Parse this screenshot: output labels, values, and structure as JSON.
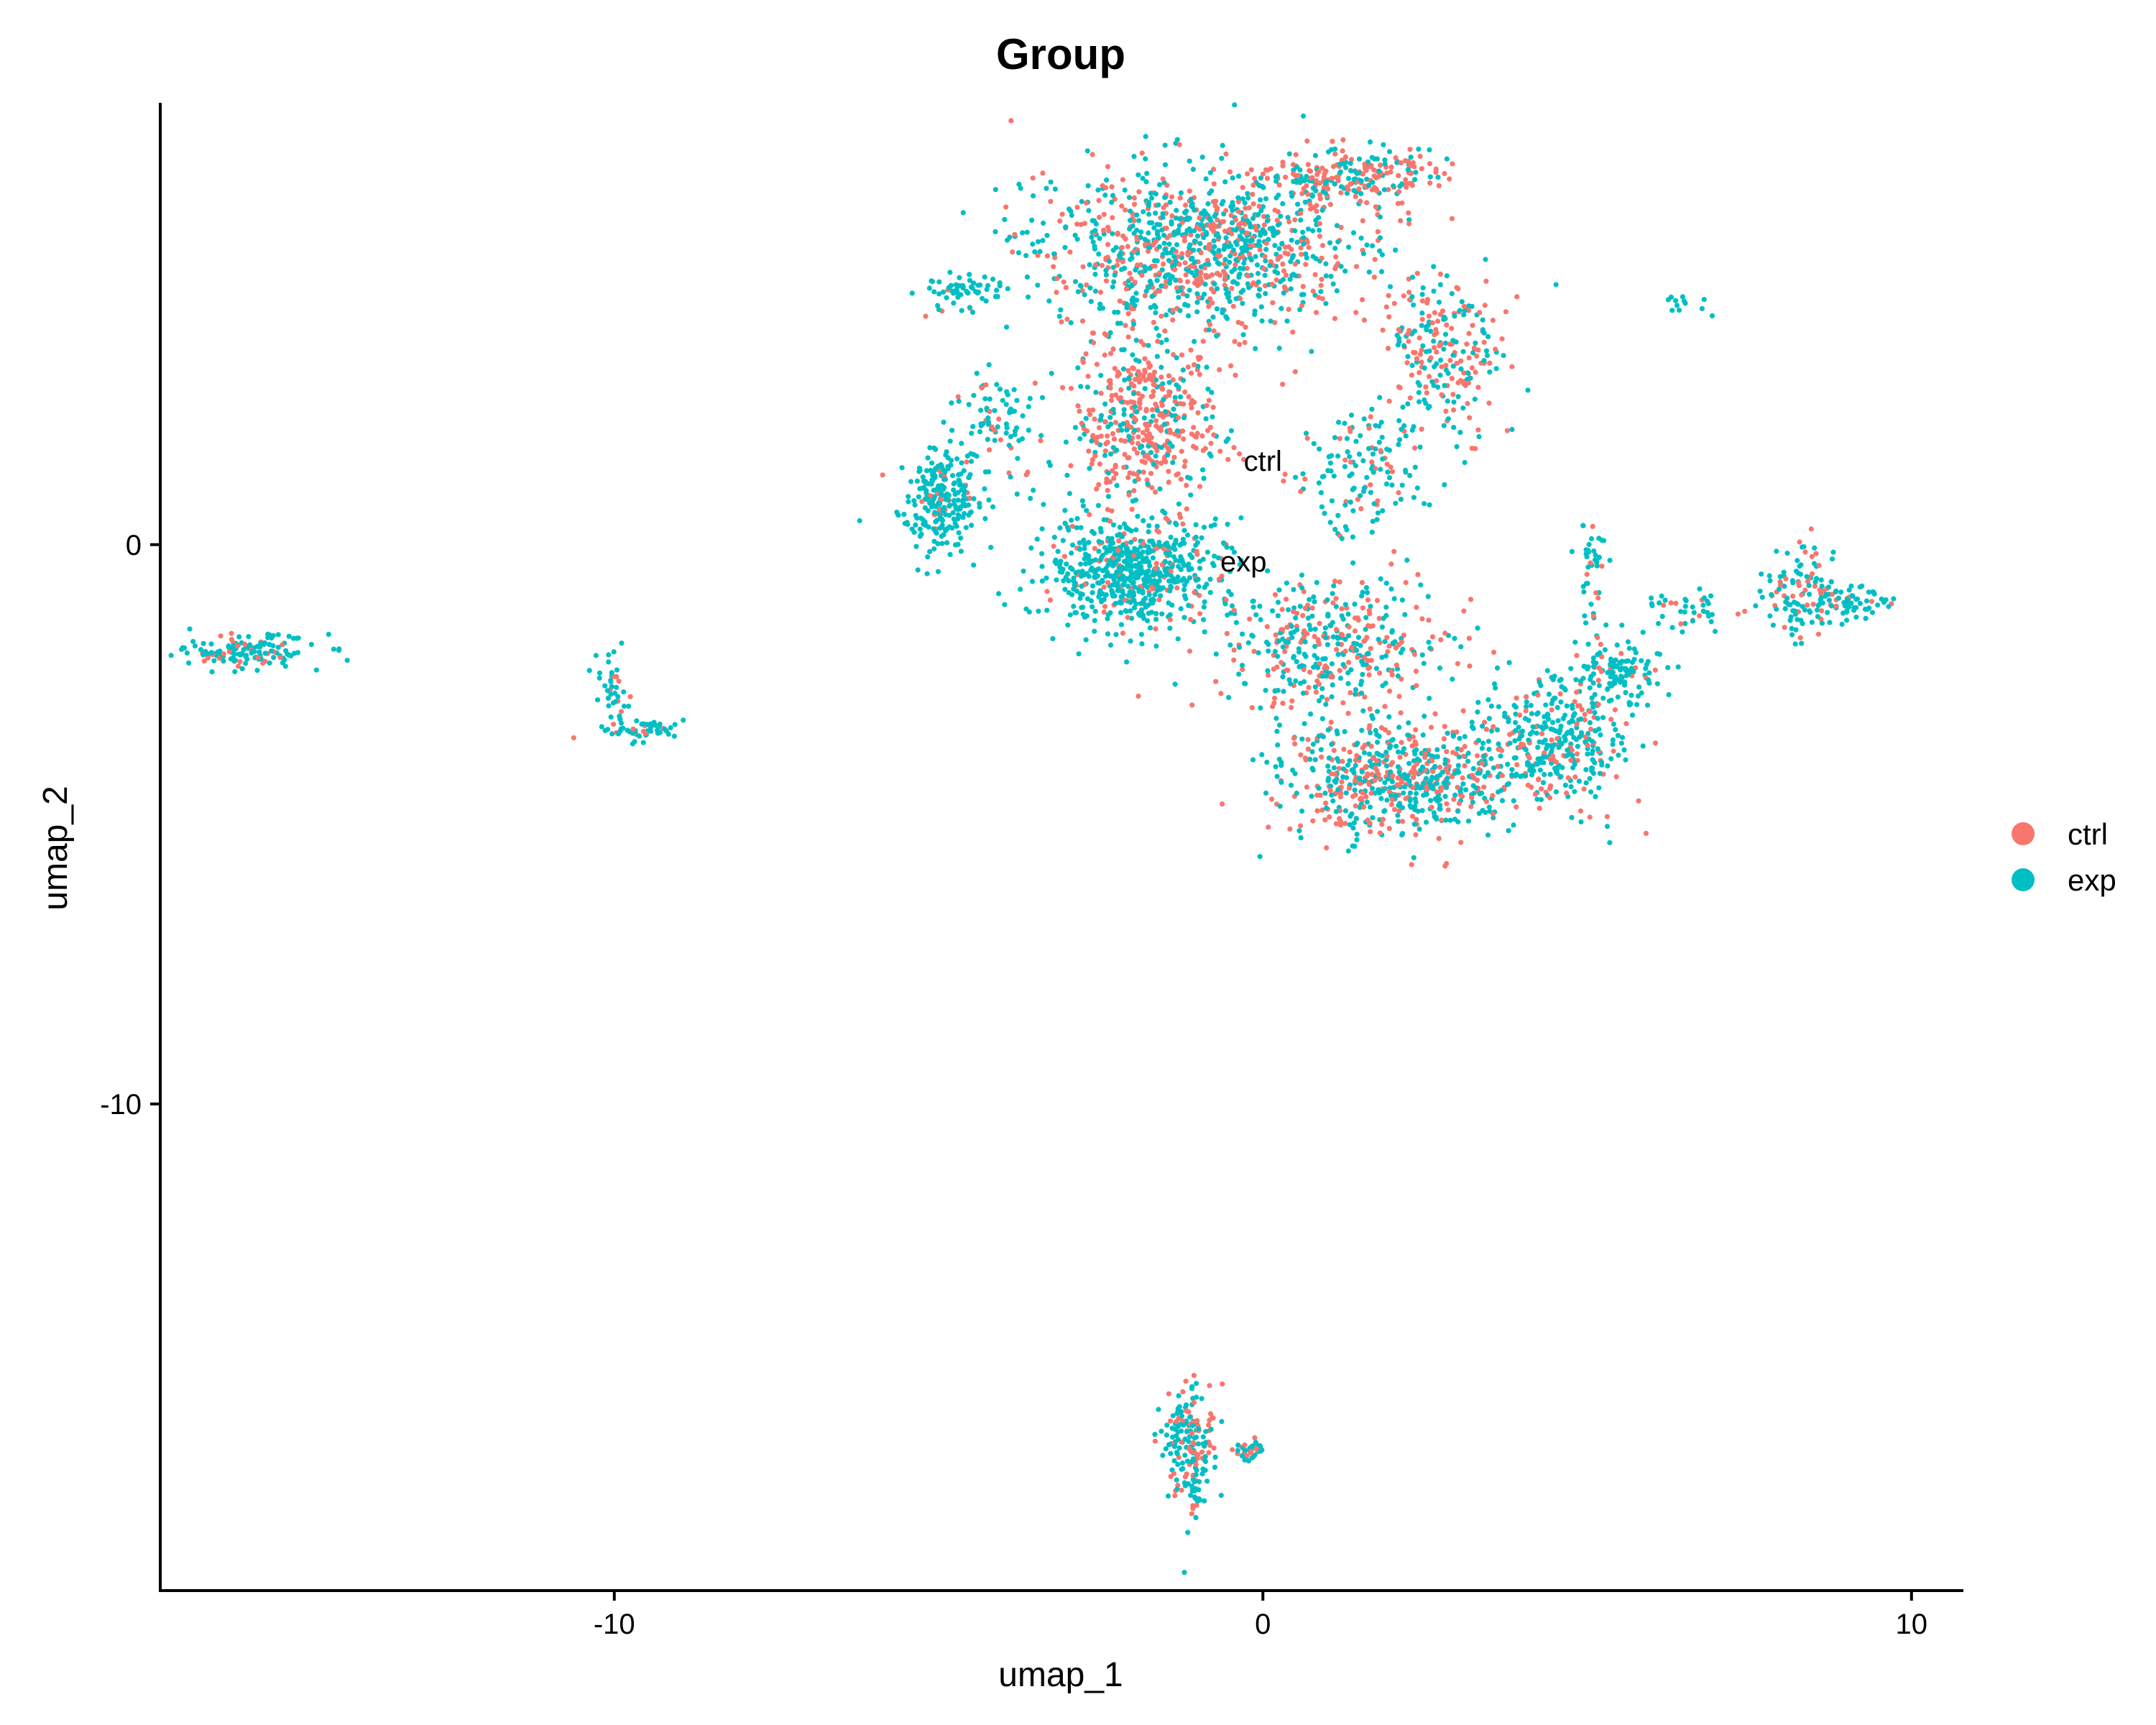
{
  "chart_data": {
    "type": "scatter",
    "title": "Group",
    "xlabel": "umap_1",
    "ylabel": "umap_2",
    "xlim": [
      -17,
      10.8
    ],
    "ylim": [
      -18.7,
      7.9
    ],
    "xticks": [
      -10,
      0,
      10
    ],
    "xtick_labels": [
      "-10",
      "0",
      "10"
    ],
    "yticks": [
      -10,
      0
    ],
    "ytick_labels": [
      "-10",
      "0"
    ],
    "grid": false,
    "legend_position": "right",
    "series": [
      {
        "name": "ctrl",
        "color": "#F8766D"
      },
      {
        "name": "exp",
        "color": "#00BFC4"
      }
    ],
    "cluster_labels": [
      {
        "text": "ctrl",
        "x": 0.0,
        "y": 1.5
      },
      {
        "text": "exp",
        "x": -0.3,
        "y": -0.3
      }
    ],
    "regions": [
      {
        "cx": -15.7,
        "cy": -1.9,
        "rx": 1.0,
        "ry": 0.28,
        "n": 140,
        "ctrl_frac": 0.22
      },
      {
        "cx": -10.0,
        "cy": -2.6,
        "rx": 0.2,
        "ry": 0.55,
        "n": 40,
        "ctrl_frac": 0.1
      },
      {
        "cx": -9.6,
        "cy": -3.3,
        "rx": 0.55,
        "ry": 0.18,
        "n": 55,
        "ctrl_frac": 0.15
      },
      {
        "cx": -4.7,
        "cy": 4.5,
        "rx": 0.6,
        "ry": 0.35,
        "n": 60,
        "ctrl_frac": 0.05
      },
      {
        "cx": -5.0,
        "cy": 0.8,
        "rx": 0.55,
        "ry": 0.8,
        "n": 260,
        "ctrl_frac": 0.1
      },
      {
        "cx": -4.1,
        "cy": 2.2,
        "rx": 0.7,
        "ry": 0.9,
        "n": 90,
        "ctrl_frac": 0.15
      },
      {
        "cx": -2.0,
        "cy": -0.5,
        "rx": 1.2,
        "ry": 0.9,
        "n": 650,
        "ctrl_frac": 0.12
      },
      {
        "cx": -1.8,
        "cy": 2.2,
        "rx": 1.0,
        "ry": 1.5,
        "n": 450,
        "ctrl_frac": 0.65
      },
      {
        "cx": -0.9,
        "cy": 5.3,
        "rx": 2.3,
        "ry": 1.3,
        "n": 1050,
        "ctrl_frac": 0.42
      },
      {
        "cx": 1.4,
        "cy": 6.6,
        "rx": 1.2,
        "ry": 0.45,
        "n": 220,
        "ctrl_frac": 0.55
      },
      {
        "cx": 2.8,
        "cy": 3.4,
        "rx": 0.8,
        "ry": 1.4,
        "n": 230,
        "ctrl_frac": 0.45
      },
      {
        "cx": 1.5,
        "cy": 1.3,
        "rx": 0.9,
        "ry": 1.0,
        "n": 140,
        "ctrl_frac": 0.25
      },
      {
        "cx": 1.0,
        "cy": -1.8,
        "rx": 1.6,
        "ry": 1.1,
        "n": 420,
        "ctrl_frac": 0.4
      },
      {
        "cx": 2.2,
        "cy": -4.2,
        "rx": 1.8,
        "ry": 0.9,
        "n": 650,
        "ctrl_frac": 0.38
      },
      {
        "cx": 4.5,
        "cy": -3.5,
        "rx": 1.0,
        "ry": 1.0,
        "n": 330,
        "ctrl_frac": 0.2
      },
      {
        "cx": 5.5,
        "cy": -2.3,
        "rx": 0.6,
        "ry": 0.6,
        "n": 120,
        "ctrl_frac": 0.1
      },
      {
        "cx": 5.1,
        "cy": -0.5,
        "rx": 0.25,
        "ry": 0.9,
        "n": 40,
        "ctrl_frac": 0.15
      },
      {
        "cx": 6.6,
        "cy": -1.2,
        "rx": 0.7,
        "ry": 0.3,
        "n": 40,
        "ctrl_frac": 0.2
      },
      {
        "cx": 8.3,
        "cy": -0.8,
        "rx": 0.5,
        "ry": 0.8,
        "n": 120,
        "ctrl_frac": 0.3
      },
      {
        "cx": 9.1,
        "cy": -1.0,
        "rx": 0.5,
        "ry": 0.25,
        "n": 60,
        "ctrl_frac": 0.1
      },
      {
        "cx": 6.5,
        "cy": 4.3,
        "rx": 0.4,
        "ry": 0.2,
        "n": 12,
        "ctrl_frac": 0.0
      },
      {
        "cx": -1.1,
        "cy": -16.0,
        "rx": 0.35,
        "ry": 0.9,
        "n": 170,
        "ctrl_frac": 0.3
      },
      {
        "cx": -0.2,
        "cy": -16.2,
        "rx": 0.25,
        "ry": 0.2,
        "n": 35,
        "ctrl_frac": 0.2
      },
      {
        "cx": -1.1,
        "cy": -17.0,
        "rx": 0.2,
        "ry": 0.4,
        "n": 25,
        "ctrl_frac": 0.2
      }
    ]
  }
}
